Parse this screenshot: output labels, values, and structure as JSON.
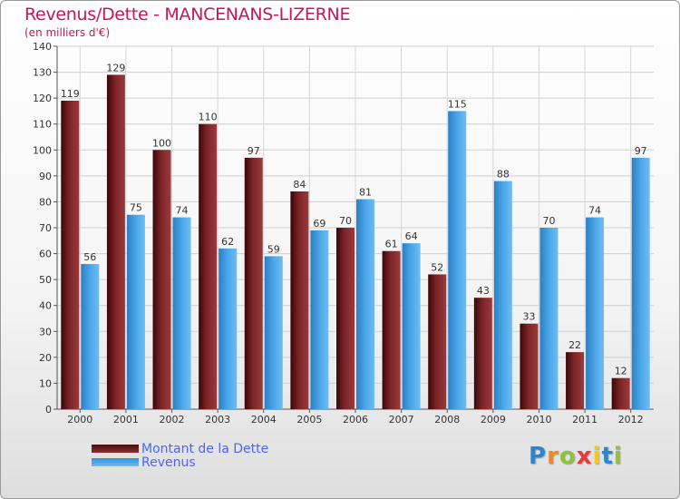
{
  "header": {
    "title": "Revenus/Dette - MANCENANS-LIZERNE",
    "subtitle": "(en milliers d'€)"
  },
  "legend": {
    "items": [
      {
        "label": "Montant de la Dette",
        "color": "#6e1a1e"
      },
      {
        "label": "Revenus",
        "color": "#4aa3e6"
      }
    ]
  },
  "logo": {
    "text": "Proxiti",
    "colors": [
      "#2f86c9",
      "#f08a1c",
      "#8cc23f",
      "#e53b3b",
      "#f6c81a",
      "#2f86c9",
      "#8cc23f"
    ]
  },
  "chart_data": {
    "type": "bar",
    "title": "Revenus/Dette - MANCENANS-LIZERNE",
    "subtitle": "(en milliers d'€)",
    "categories": [
      "2000",
      "2001",
      "2002",
      "2003",
      "2004",
      "2005",
      "2006",
      "2007",
      "2008",
      "2009",
      "2010",
      "2011",
      "2012"
    ],
    "series": [
      {
        "name": "Montant de la Dette",
        "color": "#7a2124",
        "values": [
          119,
          129,
          100,
          110,
          97,
          84,
          70,
          61,
          52,
          43,
          33,
          22,
          12
        ]
      },
      {
        "name": "Revenus",
        "color": "#4aa3e6",
        "values": [
          56,
          75,
          74,
          62,
          59,
          69,
          81,
          64,
          115,
          88,
          70,
          74,
          97
        ]
      }
    ],
    "ylim": [
      0,
      140
    ],
    "yticks": [
      0,
      10,
      20,
      30,
      40,
      50,
      60,
      70,
      80,
      90,
      100,
      110,
      120,
      130,
      140
    ],
    "grid": true,
    "legend_position": "bottom-left",
    "data_labels": true
  }
}
